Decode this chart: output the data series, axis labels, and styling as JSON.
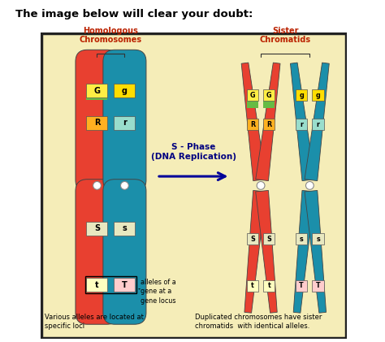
{
  "title": "The image below will clear your doubt:",
  "title_fontsize": 9.5,
  "title_color": "#000000",
  "outer_bg": "#FFFFFF",
  "box_bg": "#F5EDB8",
  "box_edge": "#222222",
  "red_chr": "#E84030",
  "blue_chr": "#1B8FAA",
  "centromere_color": "#FFFFFF",
  "label_homologous": "Homologous\nChromosomes",
  "label_sister": "Sister\nChromatids",
  "label_color": "#BB2200",
  "phase_text": "S - Phase\n(DNA Replication)",
  "phase_color": "#000080",
  "bottom_left": "Various alleles are located at\nspecific loci",
  "bottom_right": "Duplicated chromosomes have sister\nchromatids  with identical alleles.",
  "alleles_note": "alleles of a\ngene at a\ngene locus",
  "G_color": "#88BB22",
  "G_bg": "#FFEE44",
  "R_color_red": "#FFB020",
  "r_color_blue": "#99DDCC",
  "S_color": "#E8E8C0",
  "t_color": "#FFFFC0",
  "T_color": "#FFCCCC",
  "g_color": "#FFDD00"
}
